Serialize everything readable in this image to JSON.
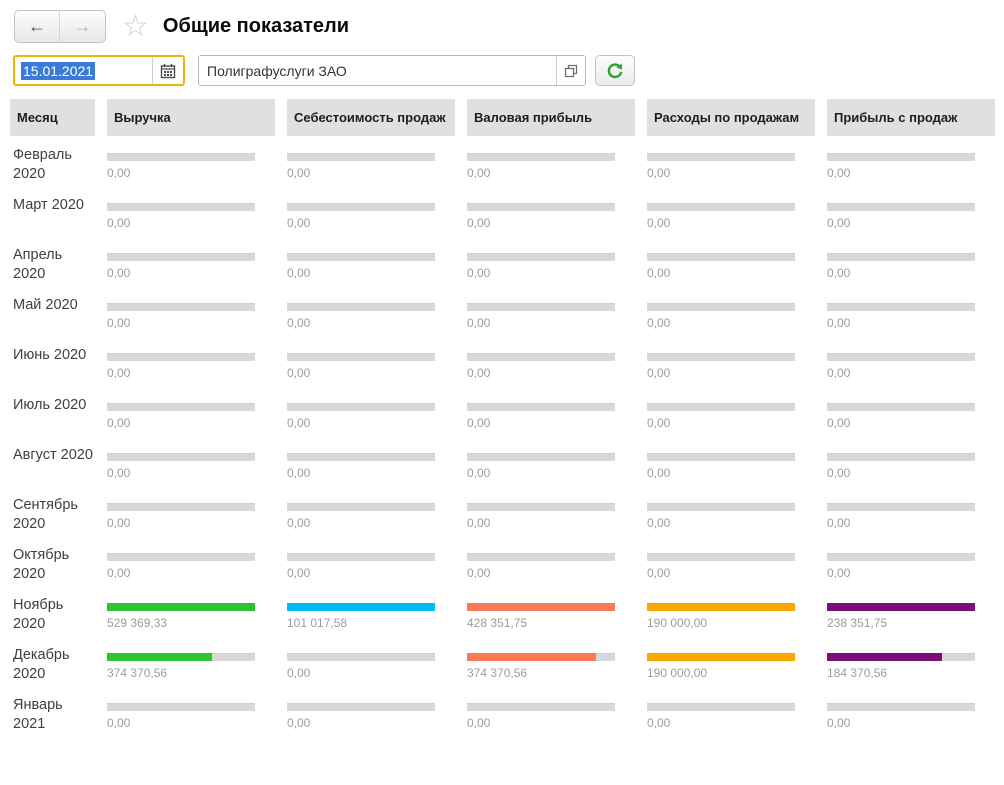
{
  "window": {
    "title": "Общие показатели"
  },
  "nav": {
    "back_icon": "←",
    "forward_icon": "→",
    "favorite_icon": "☆"
  },
  "toolbar": {
    "date_value": "15.01.2021",
    "company_value": "Полиграфуслуги ЗАО"
  },
  "table": {
    "columns": [
      "Месяц",
      "Выручка",
      "Себестоимость продаж",
      "Валовая прибыль",
      "Расходы по продажам",
      "Прибыль с продаж"
    ],
    "bar_colors": [
      "#2FC42F",
      "#00BBEF",
      "#FA7A55",
      "#FCA600",
      "#7A0F7A"
    ],
    "track_color": "#D8D8D8",
    "next_column_partial": {
      "color": "#7A0F7A"
    },
    "rows": [
      {
        "month": "Февраль 2020",
        "partial_fill": false,
        "cells": [
          {
            "value": "0,00",
            "fill": 0
          },
          {
            "value": "0,00",
            "fill": 0
          },
          {
            "value": "0,00",
            "fill": 0
          },
          {
            "value": "0,00",
            "fill": 0
          },
          {
            "value": "0,00",
            "fill": 0
          }
        ]
      },
      {
        "month": "Март 2020",
        "partial_fill": false,
        "cells": [
          {
            "value": "0,00",
            "fill": 0
          },
          {
            "value": "0,00",
            "fill": 0
          },
          {
            "value": "0,00",
            "fill": 0
          },
          {
            "value": "0,00",
            "fill": 0
          },
          {
            "value": "0,00",
            "fill": 0
          }
        ]
      },
      {
        "month": "Апрель 2020",
        "partial_fill": false,
        "cells": [
          {
            "value": "0,00",
            "fill": 0
          },
          {
            "value": "0,00",
            "fill": 0
          },
          {
            "value": "0,00",
            "fill": 0
          },
          {
            "value": "0,00",
            "fill": 0
          },
          {
            "value": "0,00",
            "fill": 0
          }
        ]
      },
      {
        "month": "Май 2020",
        "partial_fill": false,
        "cells": [
          {
            "value": "0,00",
            "fill": 0
          },
          {
            "value": "0,00",
            "fill": 0
          },
          {
            "value": "0,00",
            "fill": 0
          },
          {
            "value": "0,00",
            "fill": 0
          },
          {
            "value": "0,00",
            "fill": 0
          }
        ]
      },
      {
        "month": "Июнь 2020",
        "partial_fill": false,
        "cells": [
          {
            "value": "0,00",
            "fill": 0
          },
          {
            "value": "0,00",
            "fill": 0
          },
          {
            "value": "0,00",
            "fill": 0
          },
          {
            "value": "0,00",
            "fill": 0
          },
          {
            "value": "0,00",
            "fill": 0
          }
        ]
      },
      {
        "month": "Июль 2020",
        "partial_fill": false,
        "cells": [
          {
            "value": "0,00",
            "fill": 0
          },
          {
            "value": "0,00",
            "fill": 0
          },
          {
            "value": "0,00",
            "fill": 0
          },
          {
            "value": "0,00",
            "fill": 0
          },
          {
            "value": "0,00",
            "fill": 0
          }
        ]
      },
      {
        "month": "Август 2020",
        "partial_fill": false,
        "cells": [
          {
            "value": "0,00",
            "fill": 0
          },
          {
            "value": "0,00",
            "fill": 0
          },
          {
            "value": "0,00",
            "fill": 0
          },
          {
            "value": "0,00",
            "fill": 0
          },
          {
            "value": "0,00",
            "fill": 0
          }
        ]
      },
      {
        "month": "Сентябрь 2020",
        "partial_fill": false,
        "cells": [
          {
            "value": "0,00",
            "fill": 0
          },
          {
            "value": "0,00",
            "fill": 0
          },
          {
            "value": "0,00",
            "fill": 0
          },
          {
            "value": "0,00",
            "fill": 0
          },
          {
            "value": "0,00",
            "fill": 0
          }
        ]
      },
      {
        "month": "Октябрь 2020",
        "partial_fill": false,
        "cells": [
          {
            "value": "0,00",
            "fill": 0
          },
          {
            "value": "0,00",
            "fill": 0
          },
          {
            "value": "0,00",
            "fill": 0
          },
          {
            "value": "0,00",
            "fill": 0
          },
          {
            "value": "0,00",
            "fill": 0
          }
        ]
      },
      {
        "month": "Ноябрь 2020",
        "partial_fill": true,
        "cells": [
          {
            "value": "529 369,33",
            "fill": 1
          },
          {
            "value": "101 017,58",
            "fill": 1
          },
          {
            "value": "428 351,75",
            "fill": 1
          },
          {
            "value": "190 000,00",
            "fill": 1
          },
          {
            "value": "238 351,75",
            "fill": 1
          }
        ]
      },
      {
        "month": "Декабрь 2020",
        "partial_fill": false,
        "cells": [
          {
            "value": "374 370,56",
            "fill": 0.707
          },
          {
            "value": "0,00",
            "fill": 0
          },
          {
            "value": "374 370,56",
            "fill": 0.874
          },
          {
            "value": "190 000,00",
            "fill": 1
          },
          {
            "value": "184 370,56",
            "fill": 0.774
          }
        ]
      },
      {
        "month": "Январь 2021",
        "partial_fill": false,
        "cells": [
          {
            "value": "0,00",
            "fill": 0
          },
          {
            "value": "0,00",
            "fill": 0
          },
          {
            "value": "0,00",
            "fill": 0
          },
          {
            "value": "0,00",
            "fill": 0
          },
          {
            "value": "0,00",
            "fill": 0
          }
        ]
      }
    ]
  }
}
